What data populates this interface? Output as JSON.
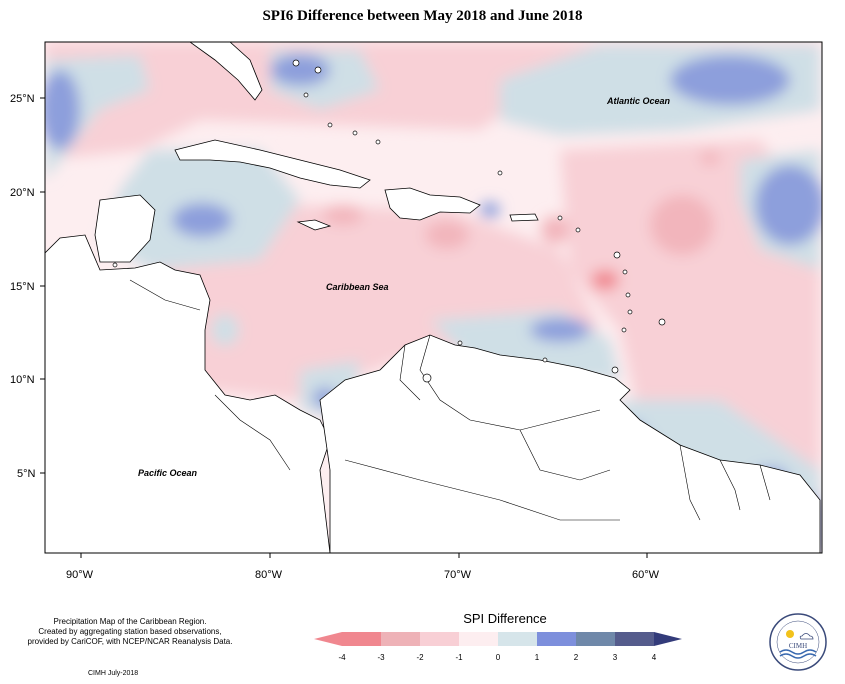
{
  "title": "SPI6 Difference between May 2018 and June 2018",
  "map": {
    "labels": {
      "atlantic": "Atlantic Ocean",
      "caribbean": "Caribbean Sea",
      "pacific": "Pacific Ocean"
    },
    "lat_ticks": [
      "25°N",
      "20°N",
      "15°N",
      "10°N",
      "5°N"
    ],
    "lon_ticks": [
      "90°W",
      "80°W",
      "70°W",
      "60°W"
    ],
    "colors": {
      "neutral": "#fdeef0",
      "light_red": "#f8d0d6",
      "mid_red": "#f2b5bc",
      "light_blue": "#cfdfe6",
      "mid_blue": "#8d9fdc",
      "dark_blue": "#6f7fce",
      "land": "#ffffff"
    }
  },
  "legend": {
    "title": "SPI Difference",
    "ticks": [
      "-4",
      "-3",
      "-2",
      "-1",
      "0",
      "1",
      "2",
      "3",
      "4"
    ],
    "colors": [
      "#f0878f",
      "#eeb2b7",
      "#f8cfd5",
      "#fdeef0",
      "#d6e5ea",
      "#7d8fdc",
      "#6f88a9",
      "#555c8c"
    ]
  },
  "footer": {
    "line1": "Precipitation Map of the Caribbean Region.",
    "line2": "Created by aggregating station based observations,",
    "line3": "provided by CariCOF, with NCEP/NCAR Reanalysis Data.",
    "credit": "CIMH July-2018"
  },
  "logo": {
    "text": "CIMH",
    "icon": "cimh-logo-icon"
  }
}
